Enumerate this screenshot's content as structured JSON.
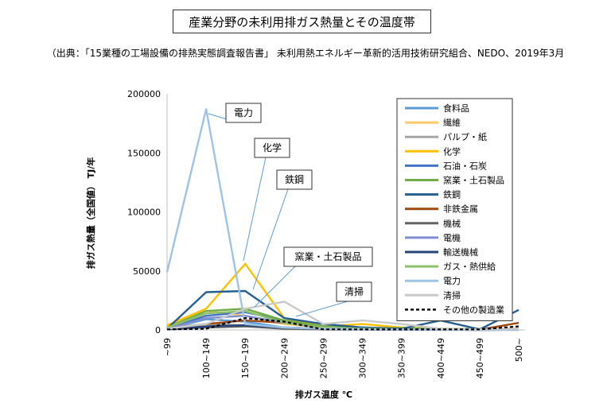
{
  "chart_data": {
    "type": "line",
    "title": "産業分野の未利用排ガス熱量とその温度帯",
    "subtitle": "（出典：「15業種の工場設備の排熱実態調査報告書」 未利用熱エネルギー革新的活用技術研究組合、NEDO、2019年3月",
    "xlabel": "排ガス温度 ℃",
    "ylabel": "排ガス熱量（全国値） TJ/年",
    "ylim": [
      0,
      200000
    ],
    "yticks": [
      "0",
      "50000",
      "100000",
      "150000",
      "200000"
    ],
    "categories": [
      "~99",
      "100~149",
      "150~199",
      "200~249",
      "250~299",
      "300~349",
      "350~399",
      "400~449",
      "450~499",
      "500~"
    ],
    "legend_position": "right",
    "grid": false,
    "series": [
      {
        "name": "食料品",
        "color": "#5b9bd5",
        "dash": false,
        "values": [
          1000,
          9000,
          7000,
          2000,
          1000,
          500,
          300,
          200,
          100,
          200
        ]
      },
      {
        "name": "繊維",
        "color": "#ffc966",
        "dash": false,
        "values": [
          3000,
          16000,
          12000,
          5000,
          2000,
          1000,
          500,
          300,
          200,
          300
        ]
      },
      {
        "name": "パルプ・紙",
        "color": "#a5a5a5",
        "dash": false,
        "values": [
          2000,
          5000,
          4000,
          2000,
          1000,
          500,
          300,
          200,
          100,
          200
        ]
      },
      {
        "name": "化学",
        "color": "#ffc000",
        "dash": false,
        "values": [
          4000,
          18000,
          56000,
          10000,
          3000,
          5000,
          2000,
          1000,
          500,
          1000
        ]
      },
      {
        "name": "石油・石炭",
        "color": "#4472c4",
        "dash": false,
        "values": [
          1000,
          12000,
          15000,
          8000,
          3000,
          2000,
          1000,
          500,
          300,
          500
        ]
      },
      {
        "name": "窯業・土石製品",
        "color": "#70ad47",
        "dash": false,
        "values": [
          2000,
          16000,
          18000,
          8000,
          3000,
          2000,
          1500,
          1000,
          800,
          1000
        ]
      },
      {
        "name": "鉄鋼",
        "color": "#255e91",
        "dash": false,
        "values": [
          1000,
          32000,
          33000,
          10000,
          5000,
          2000,
          1000,
          8000,
          500,
          17000
        ]
      },
      {
        "name": "非鉄金属",
        "color": "#9e480e",
        "dash": false,
        "values": [
          500,
          5000,
          8000,
          6000,
          2000,
          1000,
          500,
          300,
          200,
          6000
        ]
      },
      {
        "name": "機械",
        "color": "#636363",
        "dash": false,
        "values": [
          500,
          2000,
          3000,
          1000,
          500,
          300,
          200,
          100,
          100,
          100
        ]
      },
      {
        "name": "電機",
        "color": "#7f8ed1",
        "dash": false,
        "values": [
          1000,
          10000,
          12000,
          6000,
          2000,
          1000,
          500,
          300,
          200,
          200
        ]
      },
      {
        "name": "輸送機械",
        "color": "#264478",
        "dash": false,
        "values": [
          500,
          3000,
          4000,
          2000,
          1000,
          500,
          300,
          200,
          100,
          200
        ]
      },
      {
        "name": "ガス・熱供給",
        "color": "#8cc168",
        "dash": false,
        "values": [
          2000,
          14000,
          16000,
          6000,
          2000,
          1000,
          500,
          300,
          200,
          300
        ]
      },
      {
        "name": "電力",
        "color": "#9dc3e6",
        "dash": false,
        "values": [
          49000,
          187000,
          5000,
          2000,
          1000,
          500,
          300,
          200,
          100,
          200
        ]
      },
      {
        "name": "清掃",
        "color": "#c9c9c9",
        "dash": false,
        "values": [
          1000,
          5000,
          18000,
          24000,
          5000,
          8000,
          5000,
          1000,
          500,
          1000
        ]
      },
      {
        "name": "その他の製造業",
        "color": "#000000",
        "dash": true,
        "values": [
          500,
          1000,
          10000,
          7000,
          500,
          500,
          500,
          500,
          500,
          3000
        ]
      }
    ],
    "callouts": [
      {
        "label": "電力",
        "series": "電力"
      },
      {
        "label": "化学",
        "series": "化学"
      },
      {
        "label": "鉄鋼",
        "series": "鉄鋼"
      },
      {
        "label": "窯業・土石製品",
        "series": "窯業・土石製品"
      },
      {
        "label": "清掃",
        "series": "清掃"
      }
    ]
  }
}
